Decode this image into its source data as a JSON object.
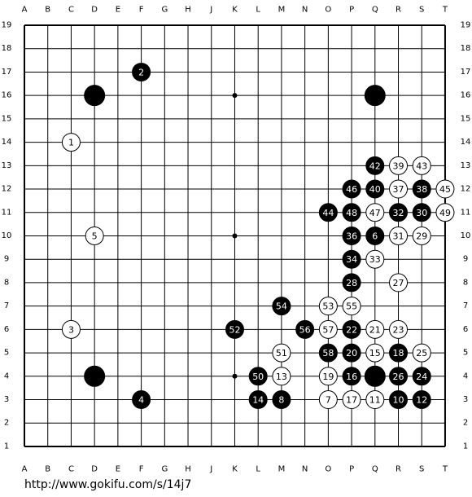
{
  "columns": [
    "A",
    "B",
    "C",
    "D",
    "E",
    "F",
    "G",
    "H",
    "J",
    "K",
    "L",
    "M",
    "N",
    "O",
    "P",
    "Q",
    "R",
    "S",
    "T"
  ],
  "rows": [
    19,
    18,
    17,
    16,
    15,
    14,
    13,
    12,
    11,
    10,
    9,
    8,
    7,
    6,
    5,
    4,
    3,
    2,
    1
  ],
  "stones": [
    {
      "color": "black",
      "col": "D",
      "row": 16
    },
    {
      "color": "black",
      "col": "Q",
      "row": 16
    },
    {
      "color": "black",
      "col": "D",
      "row": 4
    },
    {
      "color": "black",
      "col": "Q",
      "row": 4
    },
    {
      "color": "white",
      "col": "C",
      "row": 14,
      "label": "1"
    },
    {
      "color": "black",
      "col": "F",
      "row": 17,
      "label": "2"
    },
    {
      "color": "white",
      "col": "C",
      "row": 6,
      "label": "3"
    },
    {
      "color": "black",
      "col": "F",
      "row": 3,
      "label": "4"
    },
    {
      "color": "white",
      "col": "D",
      "row": 10,
      "label": "5"
    },
    {
      "color": "black",
      "col": "Q",
      "row": 10,
      "label": "6"
    },
    {
      "color": "white",
      "col": "O",
      "row": 3,
      "label": "7"
    },
    {
      "color": "black",
      "col": "M",
      "row": 3,
      "label": "8"
    },
    {
      "color": "black",
      "col": "R",
      "row": 3,
      "label": "10"
    },
    {
      "color": "white",
      "col": "Q",
      "row": 3,
      "label": "11"
    },
    {
      "color": "black",
      "col": "S",
      "row": 3,
      "label": "12"
    },
    {
      "color": "white",
      "col": "M",
      "row": 4,
      "label": "13"
    },
    {
      "color": "black",
      "col": "L",
      "row": 3,
      "label": "14"
    },
    {
      "color": "white",
      "col": "Q",
      "row": 5,
      "label": "15"
    },
    {
      "color": "black",
      "col": "P",
      "row": 4,
      "label": "16"
    },
    {
      "color": "white",
      "col": "P",
      "row": 3,
      "label": "17"
    },
    {
      "color": "black",
      "col": "R",
      "row": 5,
      "label": "18"
    },
    {
      "color": "white",
      "col": "O",
      "row": 4,
      "label": "19"
    },
    {
      "color": "black",
      "col": "P",
      "row": 5,
      "label": "20"
    },
    {
      "color": "white",
      "col": "Q",
      "row": 6,
      "label": "21"
    },
    {
      "color": "black",
      "col": "P",
      "row": 6,
      "label": "22"
    },
    {
      "color": "white",
      "col": "R",
      "row": 6,
      "label": "23"
    },
    {
      "color": "black",
      "col": "S",
      "row": 4,
      "label": "24"
    },
    {
      "color": "white",
      "col": "S",
      "row": 5,
      "label": "25"
    },
    {
      "color": "black",
      "col": "R",
      "row": 4,
      "label": "26"
    },
    {
      "color": "white",
      "col": "R",
      "row": 8,
      "label": "27"
    },
    {
      "color": "black",
      "col": "P",
      "row": 8,
      "label": "28"
    },
    {
      "color": "white",
      "col": "S",
      "row": 10,
      "label": "29"
    },
    {
      "color": "black",
      "col": "S",
      "row": 11,
      "label": "30"
    },
    {
      "color": "white",
      "col": "R",
      "row": 10,
      "label": "31"
    },
    {
      "color": "black",
      "col": "R",
      "row": 11,
      "label": "32"
    },
    {
      "color": "white",
      "col": "Q",
      "row": 9,
      "label": "33"
    },
    {
      "color": "black",
      "col": "P",
      "row": 9,
      "label": "34"
    },
    {
      "color": "black",
      "col": "P",
      "row": 10,
      "label": "36"
    },
    {
      "color": "white",
      "col": "R",
      "row": 12,
      "label": "37"
    },
    {
      "color": "black",
      "col": "S",
      "row": 12,
      "label": "38"
    },
    {
      "color": "white",
      "col": "R",
      "row": 13,
      "label": "39"
    },
    {
      "color": "black",
      "col": "Q",
      "row": 12,
      "label": "40"
    },
    {
      "color": "black",
      "col": "Q",
      "row": 13,
      "label": "42"
    },
    {
      "color": "white",
      "col": "S",
      "row": 13,
      "label": "43"
    },
    {
      "color": "black",
      "col": "O",
      "row": 11,
      "label": "44"
    },
    {
      "color": "white",
      "col": "T",
      "row": 12,
      "label": "45"
    },
    {
      "color": "black",
      "col": "P",
      "row": 12,
      "label": "46"
    },
    {
      "color": "white",
      "col": "Q",
      "row": 11,
      "label": "47"
    },
    {
      "color": "black",
      "col": "P",
      "row": 11,
      "label": "48"
    },
    {
      "color": "white",
      "col": "T",
      "row": 11,
      "label": "49"
    },
    {
      "color": "black",
      "col": "L",
      "row": 4,
      "label": "50"
    },
    {
      "color": "white",
      "col": "M",
      "row": 5,
      "label": "51"
    },
    {
      "color": "black",
      "col": "K",
      "row": 6,
      "label": "52"
    },
    {
      "color": "white",
      "col": "O",
      "row": 7,
      "label": "53"
    },
    {
      "color": "black",
      "col": "M",
      "row": 7,
      "label": "54"
    },
    {
      "color": "white",
      "col": "P",
      "row": 7,
      "label": "55"
    },
    {
      "color": "black",
      "col": "N",
      "row": 6,
      "label": "56"
    },
    {
      "color": "white",
      "col": "O",
      "row": 6,
      "label": "57"
    },
    {
      "color": "black",
      "col": "O",
      "row": 5,
      "label": "58"
    }
  ],
  "footer": "http://www.gokifu.com/s/14j7"
}
